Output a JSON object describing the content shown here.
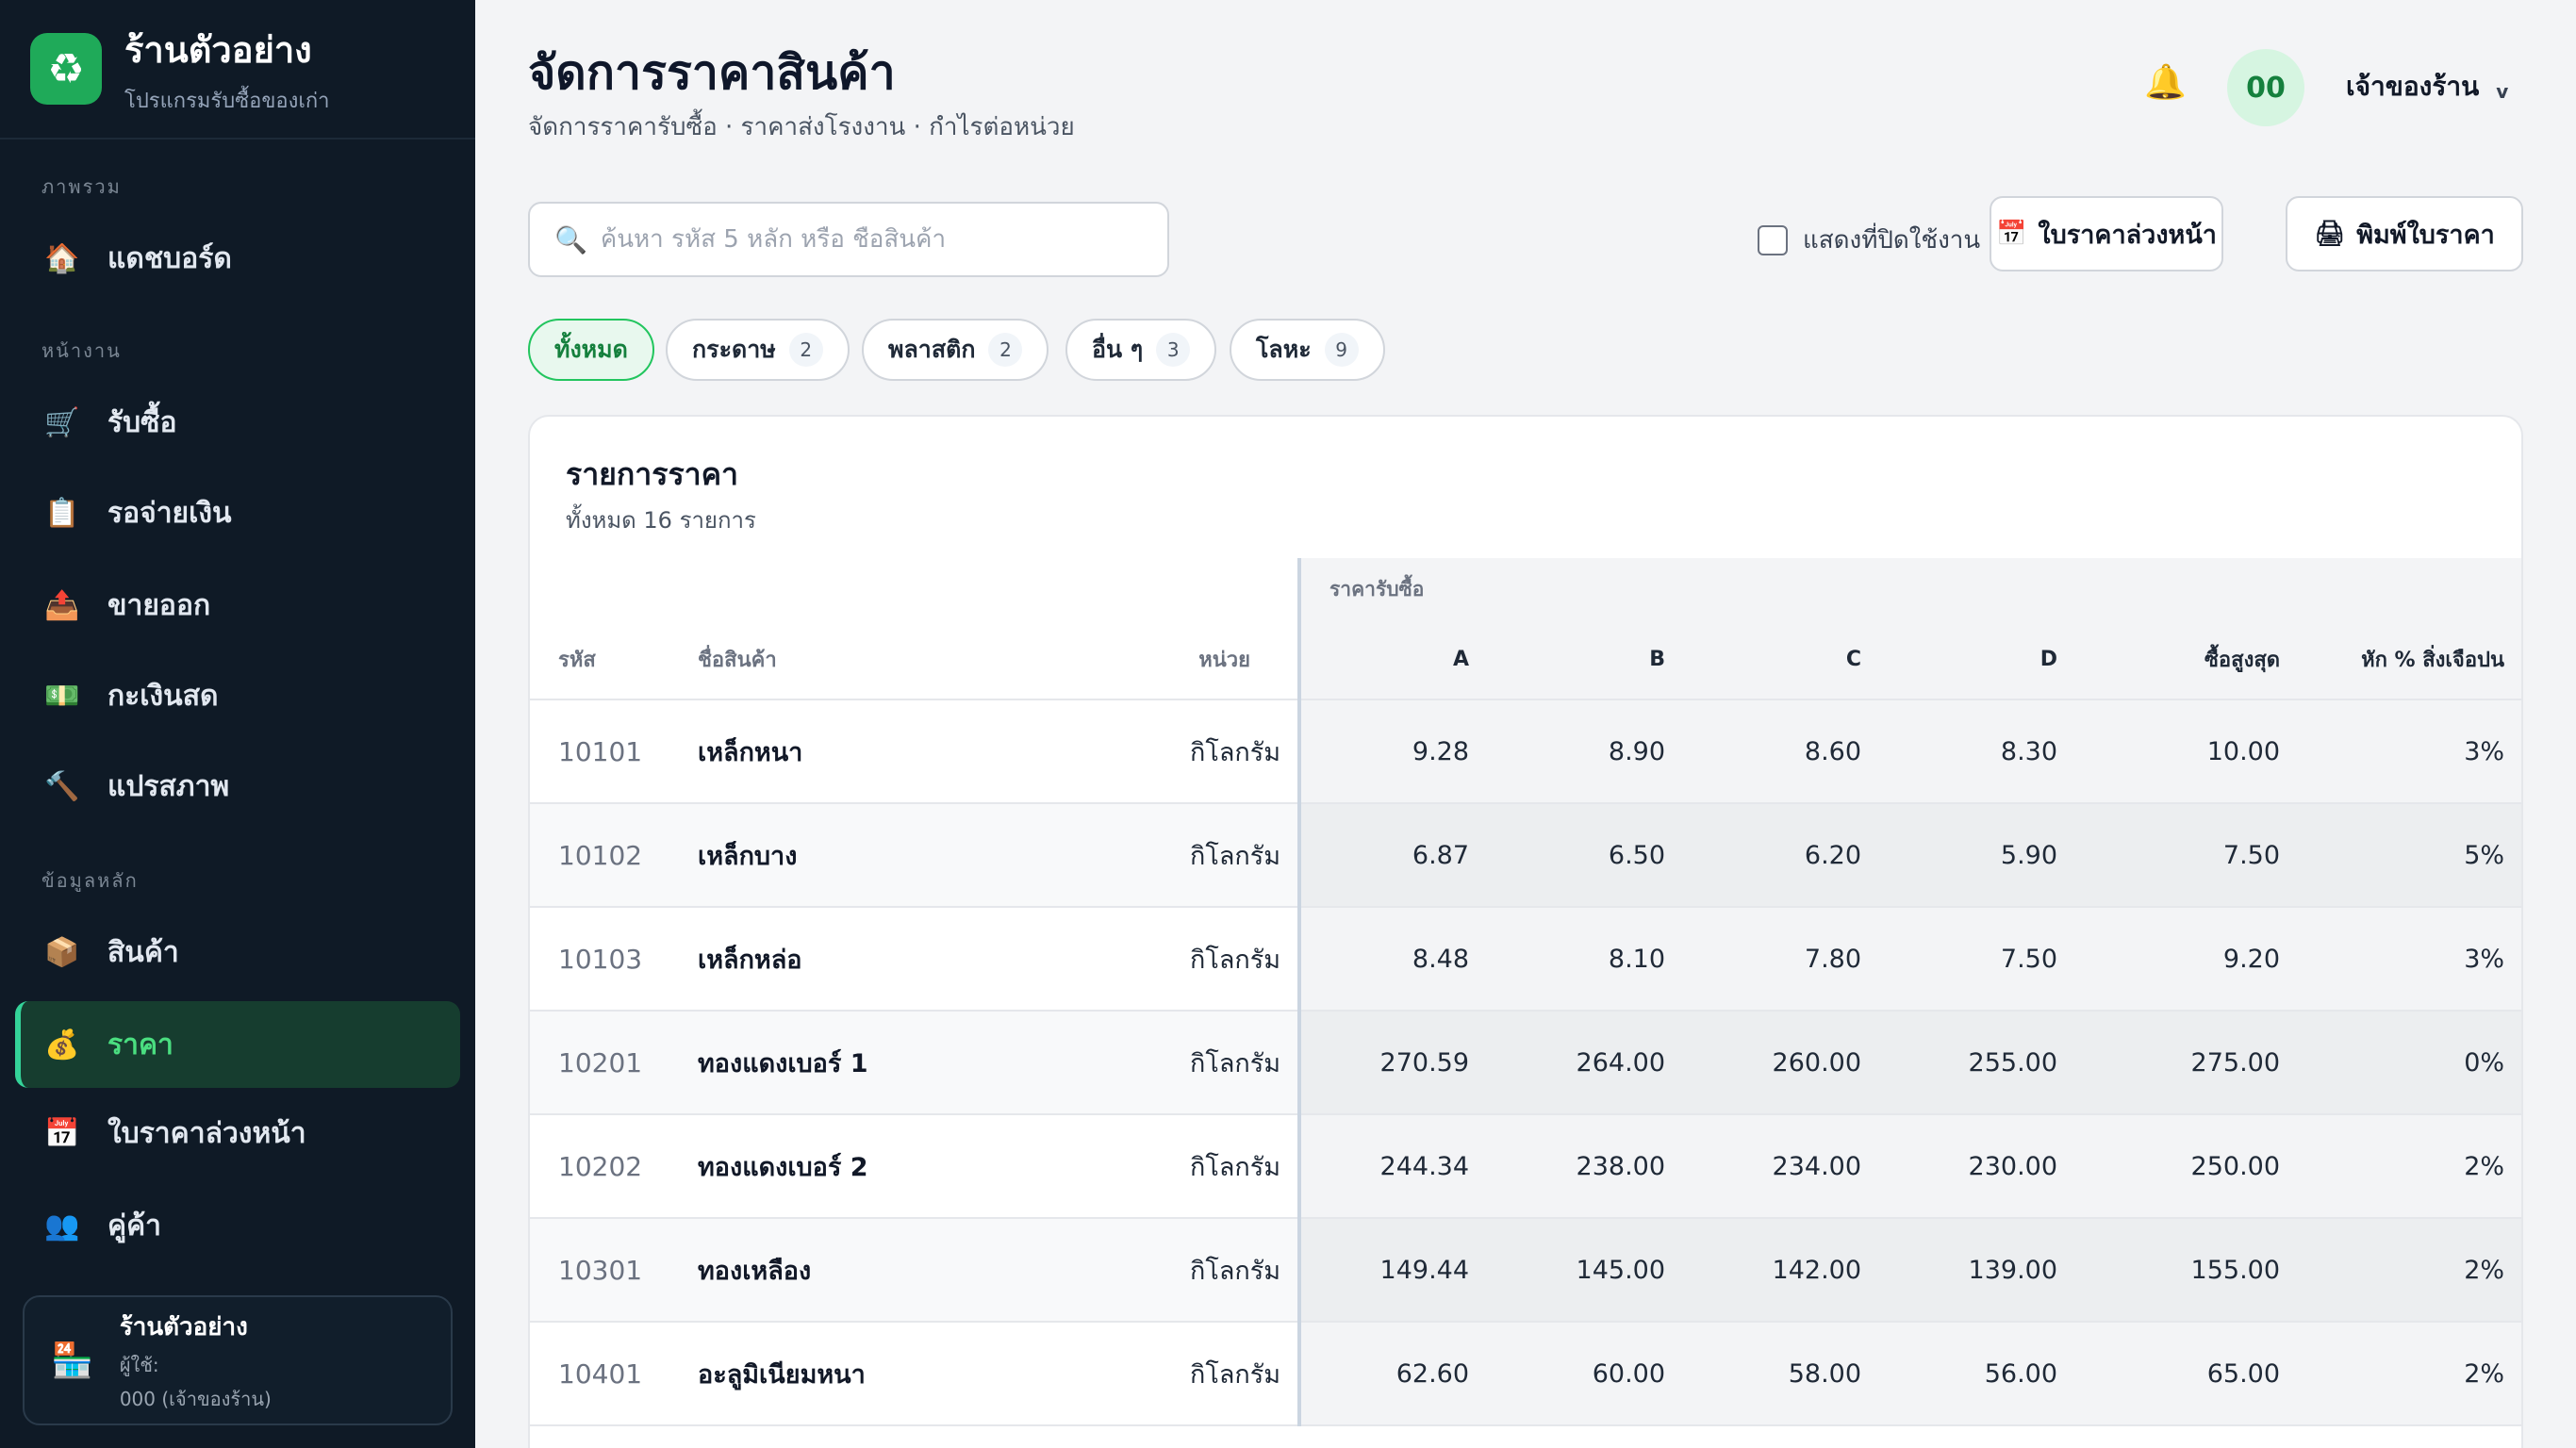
{
  "sidebar": {
    "brand_name": "ร้านตัวอย่าง",
    "brand_sub": "โปรแกรมรับซื้อของเก่า",
    "sections": {
      "overview": "ภาพรวม",
      "work": "หน้างาน",
      "master": "ข้อมูลหลัก"
    },
    "items": [
      {
        "label": "แดชบอร์ด",
        "icon": "🏠"
      },
      {
        "label": "รับซื้อ",
        "icon": "🛒"
      },
      {
        "label": "รอจ่ายเงิน",
        "icon": "📋"
      },
      {
        "label": "ขายออก",
        "icon": "📤"
      },
      {
        "label": "กะเงินสด",
        "icon": "💵"
      },
      {
        "label": "แปรสภาพ",
        "icon": "🔨"
      },
      {
        "label": "สินค้า",
        "icon": "📦"
      },
      {
        "label": "ราคา",
        "icon": "💰"
      },
      {
        "label": "ใบราคาล่วงหน้า",
        "icon": "📅"
      },
      {
        "label": "คู่ค้า",
        "icon": "👥"
      }
    ],
    "shop_card": {
      "name": "ร้านตัวอย่าง",
      "user_label": "ผู้ใช้:",
      "user_value": "000 (เจ้าของร้าน)"
    }
  },
  "header": {
    "title": "จัดการราคาสินค้า",
    "subtitle": "จัดการราคารับซื้อ · ราคาส่งโรงงาน · กำไรต่อหน่วย",
    "avatar": "00",
    "user_menu": "เจ้าของร้าน",
    "chevron": "v"
  },
  "toolbar": {
    "search_placeholder": "ค้นหา รหัส 5 หลัก หรือ ชื่อสินค้า",
    "show_inactive": "แสดงที่ปิดใช้งาน",
    "advance_price_btn": "ใบราคาล่วงหน้า",
    "print_btn": "พิมพ์ใบราคา"
  },
  "filters": [
    {
      "label": "ทั้งหมด",
      "count": ""
    },
    {
      "label": "กระดาษ",
      "count": "2"
    },
    {
      "label": "พลาสติก",
      "count": "2"
    },
    {
      "label": "อื่น ๆ",
      "count": "3"
    },
    {
      "label": "โลหะ",
      "count": "9"
    }
  ],
  "table": {
    "title": "รายการราคา",
    "subtitle": "ทั้งหมด 16 รายการ",
    "group_header": "ราคารับซื้อ",
    "columns": [
      "รหัส",
      "ชื่อสินค้า",
      "หน่วย",
      "A",
      "B",
      "C",
      "D",
      "ซื้อสูงสุด",
      "หัก % สิ่งเจือปน"
    ],
    "rows": [
      [
        "10101",
        "เหล็กหนา",
        "กิโลกรัม",
        "9.28",
        "8.90",
        "8.60",
        "8.30",
        "10.00",
        "3%"
      ],
      [
        "10102",
        "เหล็กบาง",
        "กิโลกรัม",
        "6.87",
        "6.50",
        "6.20",
        "5.90",
        "7.50",
        "5%"
      ],
      [
        "10103",
        "เหล็กหล่อ",
        "กิโลกรัม",
        "8.48",
        "8.10",
        "7.80",
        "7.50",
        "9.20",
        "3%"
      ],
      [
        "10201",
        "ทองแดงเบอร์ 1",
        "กิโลกรัม",
        "270.59",
        "264.00",
        "260.00",
        "255.00",
        "275.00",
        "0%"
      ],
      [
        "10202",
        "ทองแดงเบอร์ 2",
        "กิโลกรัม",
        "244.34",
        "238.00",
        "234.00",
        "230.00",
        "250.00",
        "2%"
      ],
      [
        "10301",
        "ทองเหลือง",
        "กิโลกรัม",
        "149.44",
        "145.00",
        "142.00",
        "139.00",
        "155.00",
        "2%"
      ],
      [
        "10401",
        "อะลูมิเนียมหนา",
        "กิโลกรัม",
        "62.60",
        "60.00",
        "58.00",
        "56.00",
        "65.00",
        "2%"
      ]
    ]
  },
  "colors": {
    "sidebar_bg": "#0f1a26",
    "accent": "#22c55e",
    "active_nav_bg": "#163d2f"
  }
}
